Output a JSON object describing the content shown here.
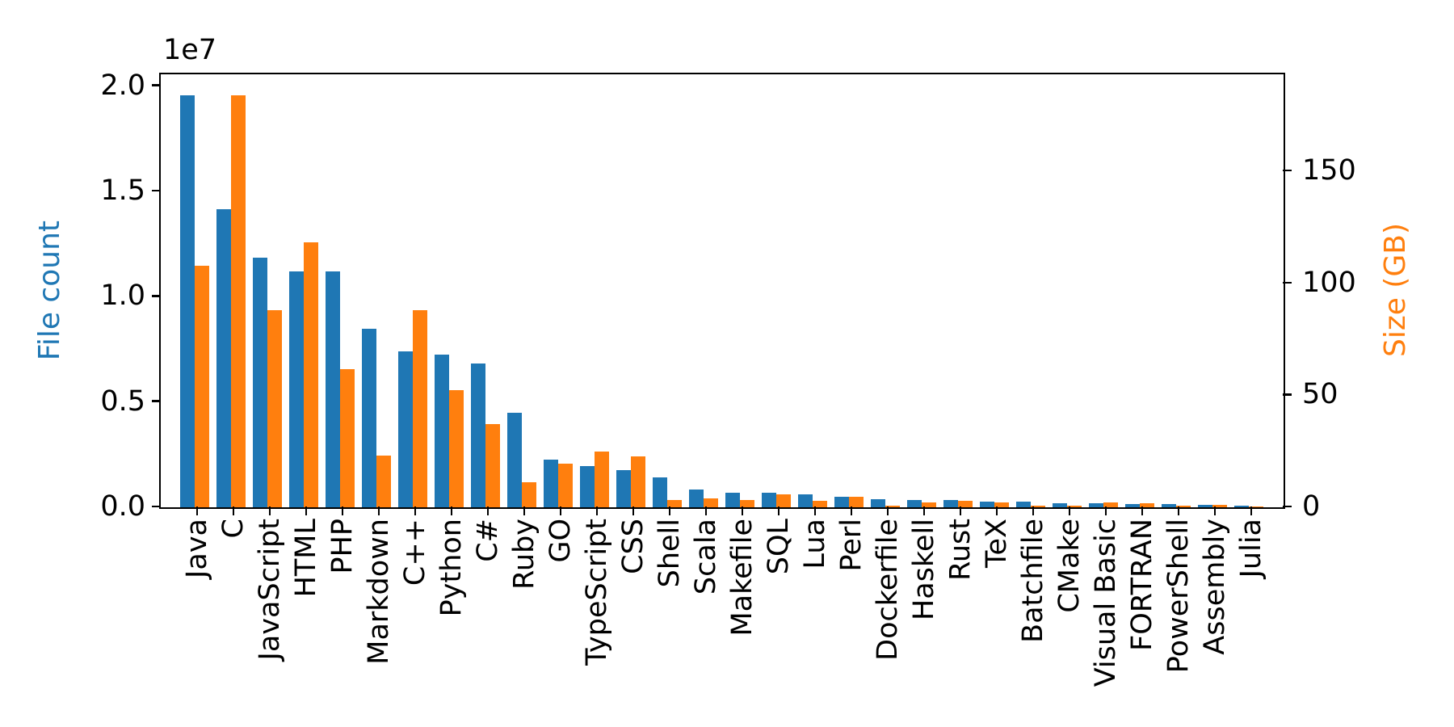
{
  "chart_data": {
    "type": "bar",
    "title": "",
    "description": "Dual-axis grouped bar chart of programming language file counts and sizes",
    "categories": [
      "Java",
      "C",
      "JavaScript",
      "HTML",
      "PHP",
      "Markdown",
      "C++",
      "Python",
      "C#",
      "Ruby",
      "GO",
      "TypeScript",
      "CSS",
      "Shell",
      "Scala",
      "Makefile",
      "SQL",
      "Lua",
      "Perl",
      "Dockerfile",
      "Haskell",
      "Rust",
      "TeX",
      "Batchfile",
      "CMake",
      "Visual Basic",
      "FORTRAN",
      "PowerShell",
      "Assembly",
      "Julia"
    ],
    "series": [
      {
        "name": "File count",
        "axis": "left",
        "color": "#1f77b4",
        "values": [
          19548190,
          14143113,
          11839883,
          11178557,
          11177610,
          8464626,
          7380520,
          7226626,
          6811652,
          4473331,
          2265436,
          1940406,
          1734406,
          1385648,
          835755,
          679430,
          656671,
          578554,
          497949,
          366505,
          340380,
          322431,
          251015,
          236945,
          175282,
          155652,
          142038,
          136846,
          82905,
          58317
        ]
      },
      {
        "name": "Size (GB)",
        "axis": "right",
        "color": "#ff7f0e",
        "values": [
          107.7,
          183.83,
          87.82,
          118.12,
          61.41,
          23.09,
          87.73,
          52.03,
          36.83,
          10.95,
          19.28,
          24.59,
          22.67,
          3.01,
          3.87,
          2.92,
          5.67,
          2.81,
          4.7,
          0.71,
          1.85,
          2.68,
          2.15,
          0.7,
          0.54,
          1.91,
          1.62,
          0.69,
          0.78,
          0.29
        ]
      }
    ],
    "left_axis": {
      "label": "File count",
      "color": "#1f77b4",
      "offset_text": "1e7",
      "tick_values": [
        0,
        5000000,
        10000000,
        15000000,
        20000000
      ],
      "tick_labels": [
        "0.0",
        "0.5",
        "1.0",
        "1.5",
        "2.0"
      ],
      "ylim": [
        0,
        20525600
      ]
    },
    "right_axis": {
      "label": "Size (GB)",
      "color": "#ff7f0e",
      "tick_values": [
        0,
        50,
        100,
        150
      ],
      "tick_labels": [
        "0",
        "50",
        "100",
        "150"
      ],
      "ylim": [
        0,
        193.0
      ]
    },
    "x_axis": {
      "tick_rotation_deg": 90
    },
    "legend": null,
    "grid": false
  }
}
